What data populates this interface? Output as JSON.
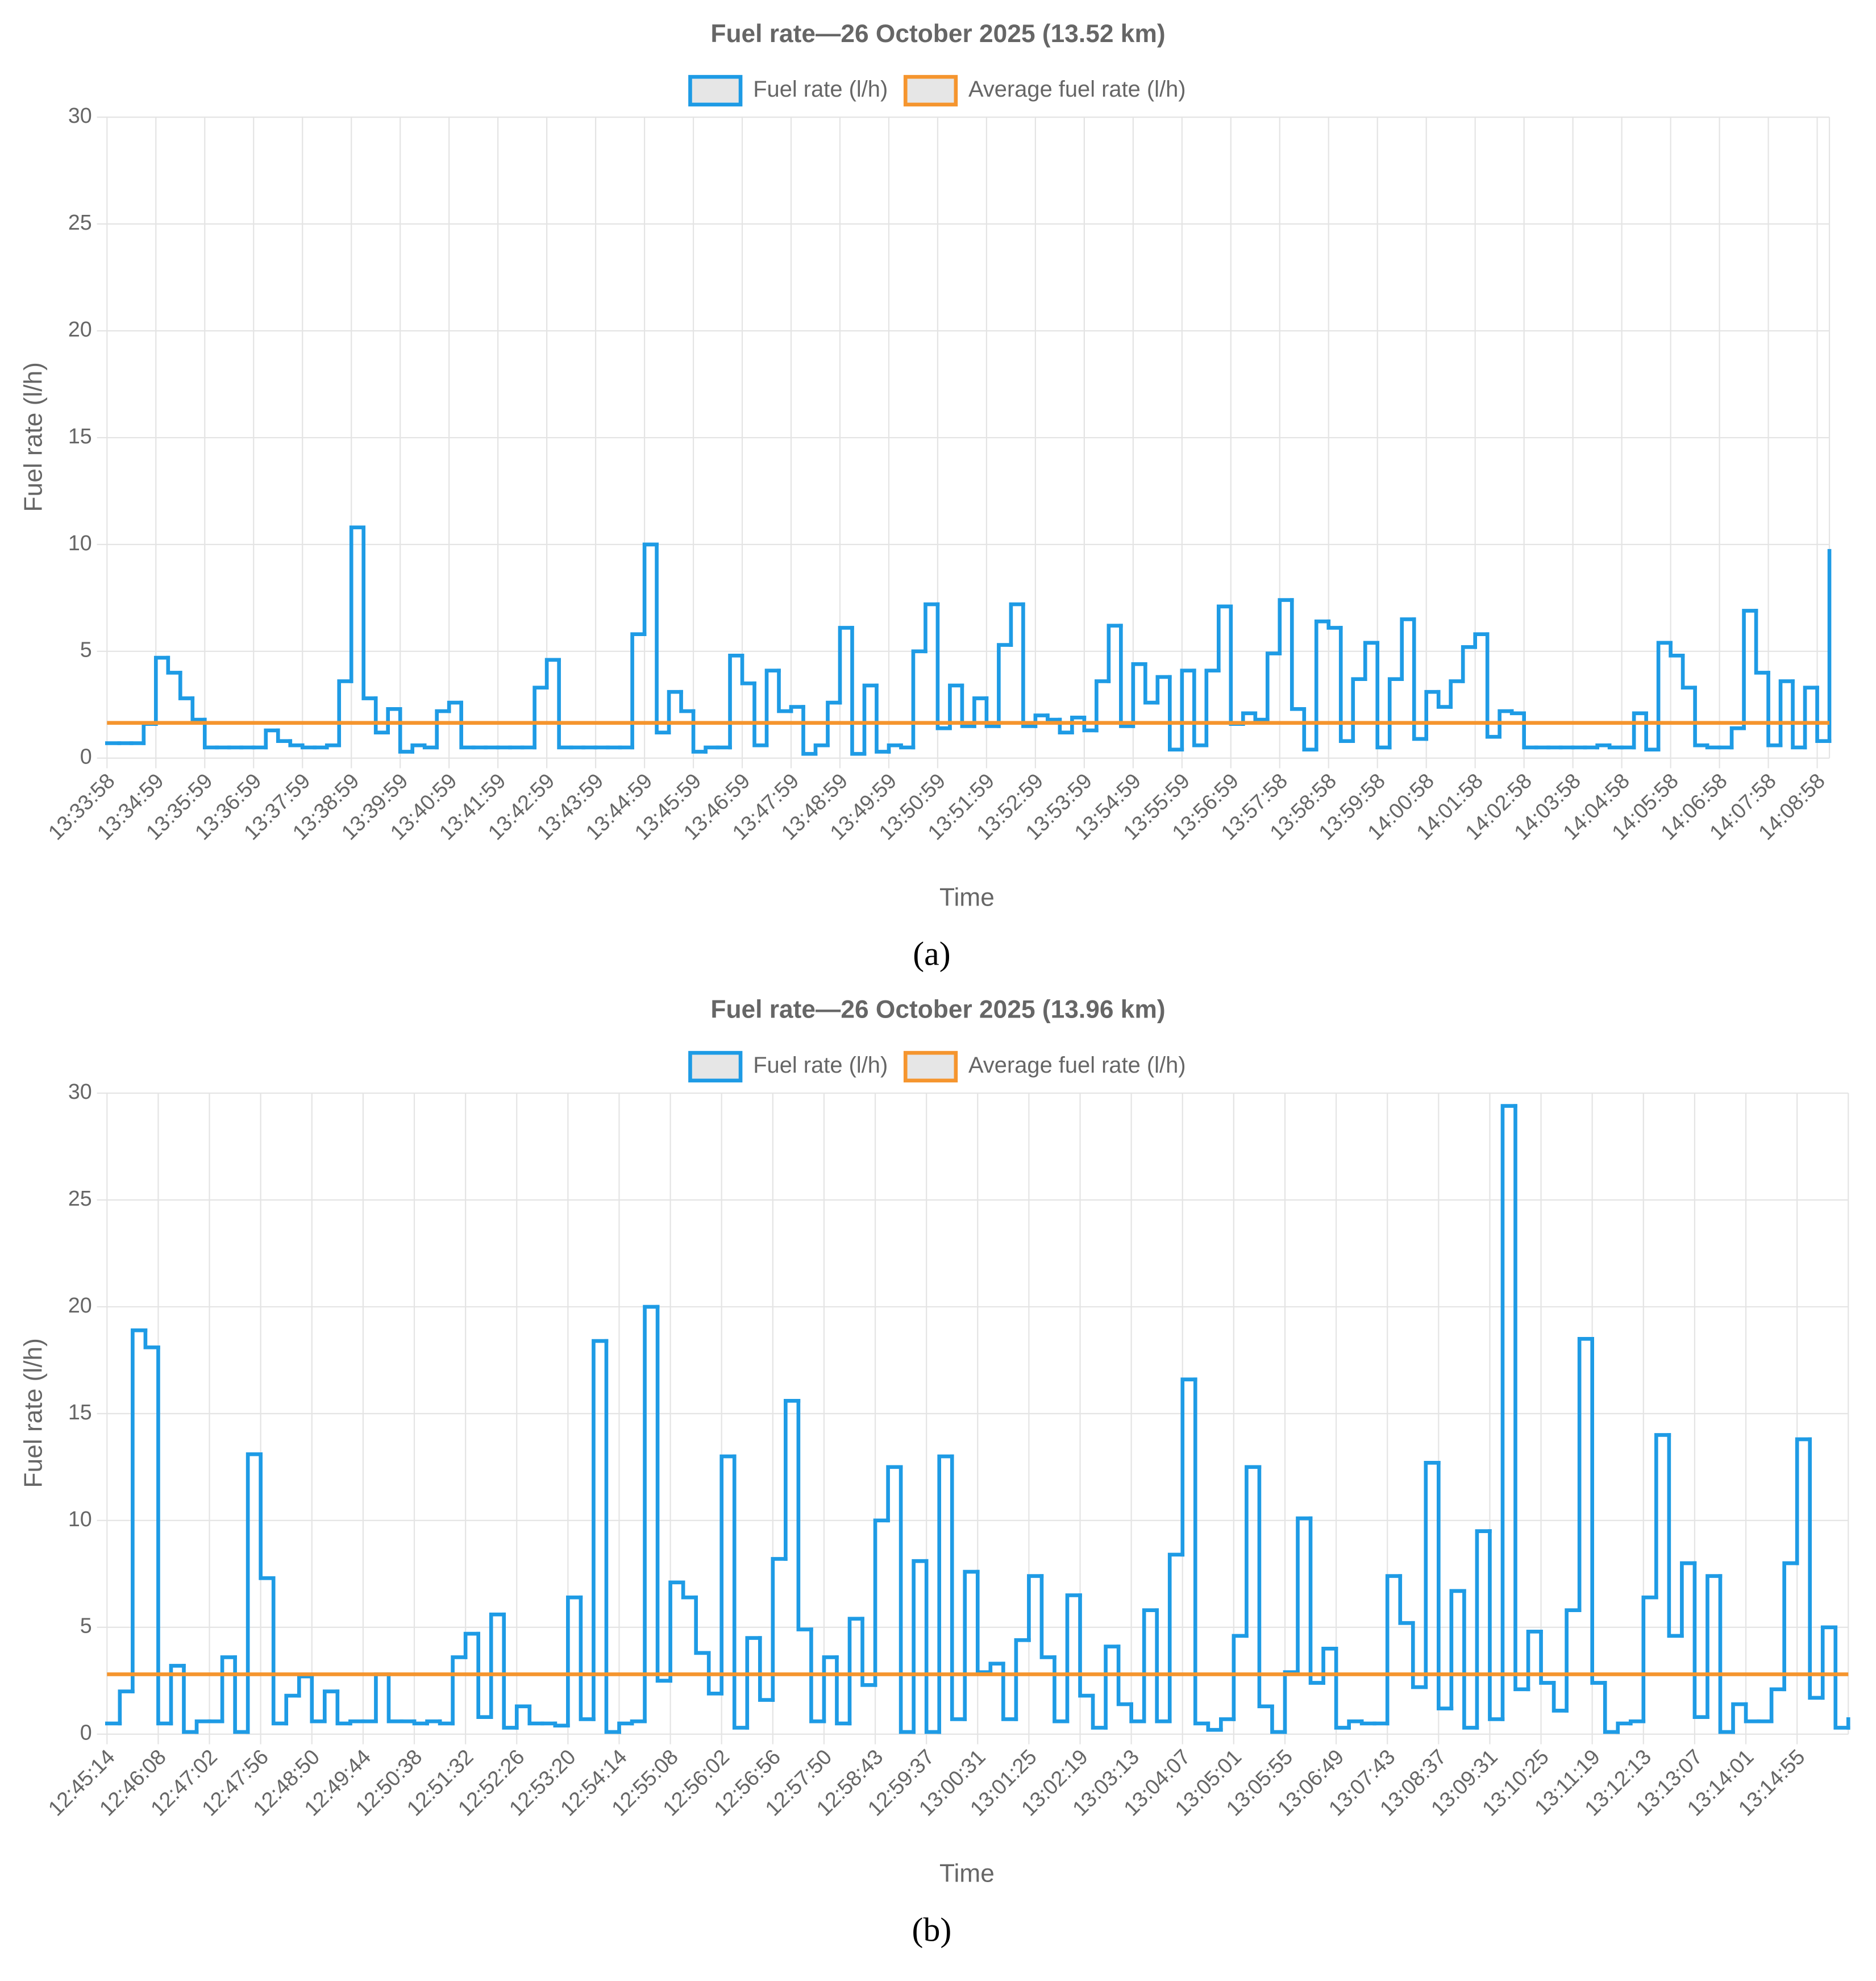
{
  "chart_data": [
    {
      "type": "line",
      "step": true,
      "title": "Fuel rate—26 October 2025 (13.52 km)",
      "xlabel": "Time",
      "ylabel": "Fuel rate (l/h)",
      "caption": "(a)",
      "categories": [
        "13:33:58",
        null,
        null,
        null,
        "13:34:59",
        null,
        null,
        null,
        "13:35:59",
        null,
        null,
        null,
        "13:36:59",
        null,
        null,
        null,
        "13:37:59",
        null,
        null,
        null,
        "13:38:59",
        null,
        null,
        null,
        "13:39:59",
        null,
        null,
        null,
        "13:40:59",
        null,
        null,
        null,
        "13:41:59",
        null,
        null,
        null,
        "13:42:59",
        null,
        null,
        null,
        "13:43:59",
        null,
        null,
        null,
        "13:44:59",
        null,
        null,
        null,
        "13:45:59",
        null,
        null,
        null,
        "13:46:59",
        null,
        null,
        null,
        "13:47:59",
        null,
        null,
        null,
        "13:48:59",
        null,
        null,
        null,
        "13:49:59",
        null,
        null,
        null,
        "13:50:59",
        null,
        null,
        null,
        "13:51:59",
        null,
        null,
        null,
        "13:52:59",
        null,
        null,
        null,
        "13:53:59",
        null,
        null,
        null,
        "13:54:59",
        null,
        null,
        null,
        "13:55:59",
        null,
        null,
        null,
        "13:56:59",
        null,
        null,
        null,
        "13:57:58",
        null,
        null,
        null,
        "13:58:58",
        null,
        null,
        null,
        "13:59:58",
        null,
        null,
        null,
        "14:00:58",
        null,
        null,
        null,
        "14:01:58",
        null,
        null,
        null,
        "14:02:58",
        null,
        null,
        null,
        "14:03:58",
        null,
        null,
        null,
        "14:04:58",
        null,
        null,
        null,
        "14:05:58",
        null,
        null,
        null,
        "14:06:58",
        null,
        null,
        null,
        "14:07:58",
        null,
        null,
        null,
        "14:08:58",
        null
      ],
      "series": [
        {
          "name": "Fuel rate (l/h)",
          "color": "#1e9be5",
          "values": [
            0.7,
            0.7,
            0.7,
            1.6,
            4.7,
            4.0,
            2.8,
            1.8,
            0.5,
            0.5,
            0.5,
            0.5,
            0.5,
            1.3,
            0.8,
            0.6,
            0.5,
            0.5,
            0.6,
            3.6,
            10.8,
            2.8,
            1.2,
            2.3,
            0.3,
            0.6,
            0.5,
            2.2,
            2.6,
            0.5,
            0.5,
            0.5,
            0.5,
            0.5,
            0.5,
            3.3,
            4.6,
            0.5,
            0.5,
            0.5,
            0.5,
            0.5,
            0.5,
            5.8,
            10.0,
            1.2,
            3.1,
            2.2,
            0.3,
            0.5,
            0.5,
            4.8,
            3.5,
            0.6,
            4.1,
            2.2,
            2.4,
            0.2,
            0.6,
            2.6,
            6.1,
            0.2,
            3.4,
            0.3,
            0.6,
            0.5,
            5.0,
            7.2,
            1.4,
            3.4,
            1.5,
            2.8,
            1.5,
            5.3,
            7.2,
            1.5,
            2.0,
            1.8,
            1.2,
            1.9,
            1.3,
            3.6,
            6.2,
            1.5,
            4.4,
            2.6,
            3.8,
            0.4,
            4.1,
            0.6,
            4.1,
            7.1,
            1.6,
            2.1,
            1.8,
            4.9,
            7.4,
            2.3,
            0.4,
            6.4,
            6.1,
            0.8,
            3.7,
            5.4,
            0.5,
            3.7,
            6.5,
            0.9,
            3.1,
            2.4,
            3.6,
            5.2,
            5.8,
            1.0,
            2.2,
            2.1,
            0.5,
            0.5,
            0.5,
            0.5,
            0.5,
            0.5,
            0.6,
            0.5,
            0.5,
            2.1,
            0.4,
            5.4,
            4.8,
            3.3,
            0.6,
            0.5,
            0.5,
            1.4,
            6.9,
            4.0,
            0.6,
            3.6,
            0.5,
            3.3,
            0.8,
            9.7
          ]
        },
        {
          "name": "Average fuel rate (l/h)",
          "color": "#f5952e",
          "value": 1.65
        }
      ],
      "ylim": [
        0,
        30
      ],
      "yticks": [
        0,
        5,
        10,
        15,
        20,
        25,
        30
      ],
      "grid": true,
      "legend": "top"
    },
    {
      "type": "line",
      "step": true,
      "title": "Fuel rate—26 October 2025 (13.96 km)",
      "xlabel": "Time",
      "ylabel": "Fuel rate (l/h)",
      "caption": "(b)",
      "categories": [
        "12:45:14",
        null,
        null,
        null,
        "12:46:08",
        null,
        null,
        null,
        "12:47:02",
        null,
        null,
        null,
        "12:47:56",
        null,
        null,
        null,
        "12:48:50",
        null,
        null,
        null,
        "12:49:44",
        null,
        null,
        null,
        "12:50:38",
        null,
        null,
        null,
        "12:51:32",
        null,
        null,
        null,
        "12:52:26",
        null,
        null,
        null,
        "12:53:20",
        null,
        null,
        null,
        "12:54:14",
        null,
        null,
        null,
        "12:55:08",
        null,
        null,
        null,
        "12:56:02",
        null,
        null,
        null,
        "12:56:56",
        null,
        null,
        null,
        "12:57:50",
        null,
        null,
        null,
        "12:58:43",
        null,
        null,
        null,
        "12:59:37",
        null,
        null,
        null,
        "13:00:31",
        null,
        null,
        null,
        "13:01:25",
        null,
        null,
        null,
        "13:02:19",
        null,
        null,
        null,
        "13:03:13",
        null,
        null,
        null,
        "13:04:07",
        null,
        null,
        null,
        "13:05:01",
        null,
        null,
        null,
        "13:05:55",
        null,
        null,
        null,
        "13:06:49",
        null,
        null,
        null,
        "13:07:43",
        null,
        null,
        null,
        "13:08:37",
        null,
        null,
        null,
        "13:09:31",
        null,
        null,
        null,
        "13:10:25",
        null,
        null,
        null,
        "13:11:19",
        null,
        null,
        null,
        "13:12:13",
        null,
        null,
        null,
        "13:13:07",
        null,
        null,
        null,
        "13:14:01",
        null,
        null,
        null,
        "13:14:55",
        null,
        null,
        null,
        null
      ],
      "series": [
        {
          "name": "Fuel rate (l/h)",
          "color": "#1e9be5",
          "values": [
            0.5,
            2.0,
            18.9,
            18.1,
            0.5,
            3.2,
            0.1,
            0.6,
            0.6,
            3.6,
            0.1,
            13.1,
            7.3,
            0.5,
            1.8,
            2.7,
            0.6,
            2.0,
            0.5,
            0.6,
            0.6,
            2.8,
            0.6,
            0.6,
            0.5,
            0.6,
            0.5,
            3.6,
            4.7,
            0.8,
            5.6,
            0.3,
            1.3,
            0.5,
            0.5,
            0.4,
            6.4,
            0.7,
            18.4,
            0.1,
            0.5,
            0.6,
            20.0,
            2.5,
            7.1,
            6.4,
            3.8,
            1.9,
            13.0,
            0.3,
            4.5,
            1.6,
            8.2,
            15.6,
            4.9,
            0.6,
            3.6,
            0.5,
            5.4,
            2.3,
            10.0,
            12.5,
            0.1,
            8.1,
            0.1,
            13.0,
            0.7,
            7.6,
            2.9,
            3.3,
            0.7,
            4.4,
            7.4,
            3.6,
            0.6,
            6.5,
            1.8,
            0.3,
            4.1,
            1.4,
            0.6,
            5.8,
            0.6,
            8.4,
            16.6,
            0.5,
            0.2,
            0.7,
            4.6,
            12.5,
            1.3,
            0.1,
            2.9,
            10.1,
            2.4,
            4.0,
            0.3,
            0.6,
            0.5,
            0.5,
            7.4,
            5.2,
            2.2,
            12.7,
            1.2,
            6.7,
            0.3,
            9.5,
            0.7,
            29.4,
            2.1,
            4.8,
            2.4,
            1.1,
            5.8,
            18.5,
            2.4,
            0.1,
            0.5,
            0.6,
            6.4,
            14.0,
            4.6,
            8.0,
            0.8,
            7.4,
            0.1,
            1.4,
            0.6,
            0.6,
            2.1,
            8.0,
            13.8,
            1.7,
            5.0,
            0.3,
            0.7
          ]
        },
        {
          "name": "Average fuel rate (l/h)",
          "color": "#f5952e",
          "value": 2.8
        }
      ],
      "ylim": [
        0,
        30
      ],
      "yticks": [
        0,
        5,
        10,
        15,
        20,
        25,
        30
      ],
      "grid": true,
      "legend": "top"
    }
  ]
}
